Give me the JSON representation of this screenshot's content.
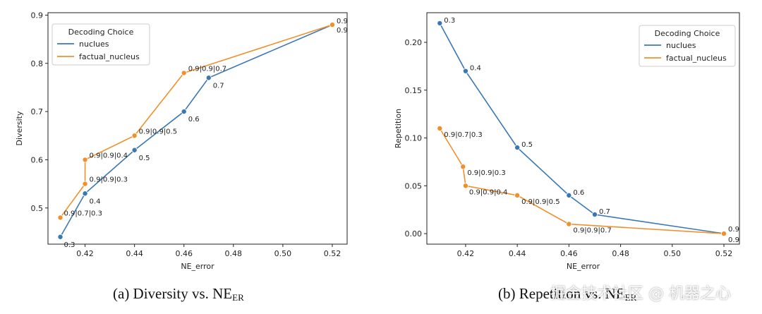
{
  "colors": {
    "nuclues": "#3a78b5",
    "factual_nucleus": "#f0902c"
  },
  "chart_data": [
    {
      "type": "line",
      "caption": {
        "text": "(a) Diversity vs. NE",
        "sub": "ER"
      },
      "xlabel": "NE_error",
      "ylabel": "Diversity",
      "xlim": [
        0.405,
        0.526
      ],
      "ylim": [
        0.425,
        0.905
      ],
      "xticks": [
        0.42,
        0.44,
        0.46,
        0.48,
        0.5,
        0.52
      ],
      "xtick_labels": [
        "0.42",
        "0.44",
        "0.46",
        "0.48",
        "0.50",
        "0.52"
      ],
      "yticks": [
        0.5,
        0.6,
        0.7,
        0.8,
        0.9
      ],
      "ytick_labels": [
        "0.5",
        "0.6",
        "0.7",
        "0.8",
        "0.9"
      ],
      "legend": {
        "title": "Decoding Choice",
        "position": "top-left"
      },
      "series": [
        {
          "name": "nuclues",
          "points": [
            {
              "x": 0.41,
              "y": 0.44,
              "label": "0.3"
            },
            {
              "x": 0.42,
              "y": 0.53,
              "label": "0.4"
            },
            {
              "x": 0.44,
              "y": 0.62,
              "label": "0.5"
            },
            {
              "x": 0.46,
              "y": 0.7,
              "label": "0.6"
            },
            {
              "x": 0.47,
              "y": 0.77,
              "label": "0.7"
            },
            {
              "x": 0.52,
              "y": 0.88,
              "label": "0.9"
            }
          ]
        },
        {
          "name": "factual_nucleus",
          "points": [
            {
              "x": 0.41,
              "y": 0.48,
              "label": "0.9|0.7|0.3"
            },
            {
              "x": 0.42,
              "y": 0.55,
              "label": "0.9|0.9|0.3"
            },
            {
              "x": 0.42,
              "y": 0.6,
              "label": "0.9|0.9|0.4"
            },
            {
              "x": 0.44,
              "y": 0.65,
              "label": "0.9|0.9|0.5"
            },
            {
              "x": 0.46,
              "y": 0.78,
              "label": "0.9|0.9|0.7"
            },
            {
              "x": 0.52,
              "y": 0.88,
              "label": "0.9"
            }
          ]
        }
      ]
    },
    {
      "type": "line",
      "caption": {
        "text": "(b) Repetition vs. NE",
        "sub": "ER"
      },
      "xlabel": "NE_error",
      "ylabel": "Repetition",
      "xlim": [
        0.405,
        0.526
      ],
      "ylim": [
        -0.011,
        0.231
      ],
      "xticks": [
        0.42,
        0.44,
        0.46,
        0.48,
        0.5,
        0.52
      ],
      "xtick_labels": [
        "0.42",
        "0.44",
        "0.46",
        "0.48",
        "0.50",
        "0.52"
      ],
      "yticks": [
        0.0,
        0.05,
        0.1,
        0.15,
        0.2
      ],
      "ytick_labels": [
        "0.00",
        "0.05",
        "0.10",
        "0.15",
        "0.20"
      ],
      "legend": {
        "title": "Decoding Choice",
        "position": "top-right"
      },
      "series": [
        {
          "name": "nuclues",
          "points": [
            {
              "x": 0.41,
              "y": 0.22,
              "label": "0.3"
            },
            {
              "x": 0.42,
              "y": 0.17,
              "label": "0.4"
            },
            {
              "x": 0.44,
              "y": 0.09,
              "label": "0.5"
            },
            {
              "x": 0.46,
              "y": 0.04,
              "label": "0.6"
            },
            {
              "x": 0.47,
              "y": 0.02,
              "label": "0.7"
            },
            {
              "x": 0.52,
              "y": 0.0,
              "label": "0.9"
            }
          ]
        },
        {
          "name": "factual_nucleus",
          "points": [
            {
              "x": 0.41,
              "y": 0.11,
              "label": "0.9|0.7|0.3"
            },
            {
              "x": 0.419,
              "y": 0.07,
              "label": "0.9|0.9|0.3"
            },
            {
              "x": 0.42,
              "y": 0.05,
              "label": "0.9|0.9|0.4"
            },
            {
              "x": 0.44,
              "y": 0.04,
              "label": "0.9|0.9|0.5"
            },
            {
              "x": 0.46,
              "y": 0.01,
              "label": "0.9|0.9|0.7"
            },
            {
              "x": 0.52,
              "y": 0.0,
              "label": "0.9"
            }
          ]
        }
      ]
    }
  ],
  "watermark": "掘金技术社区 @ 机器之心"
}
